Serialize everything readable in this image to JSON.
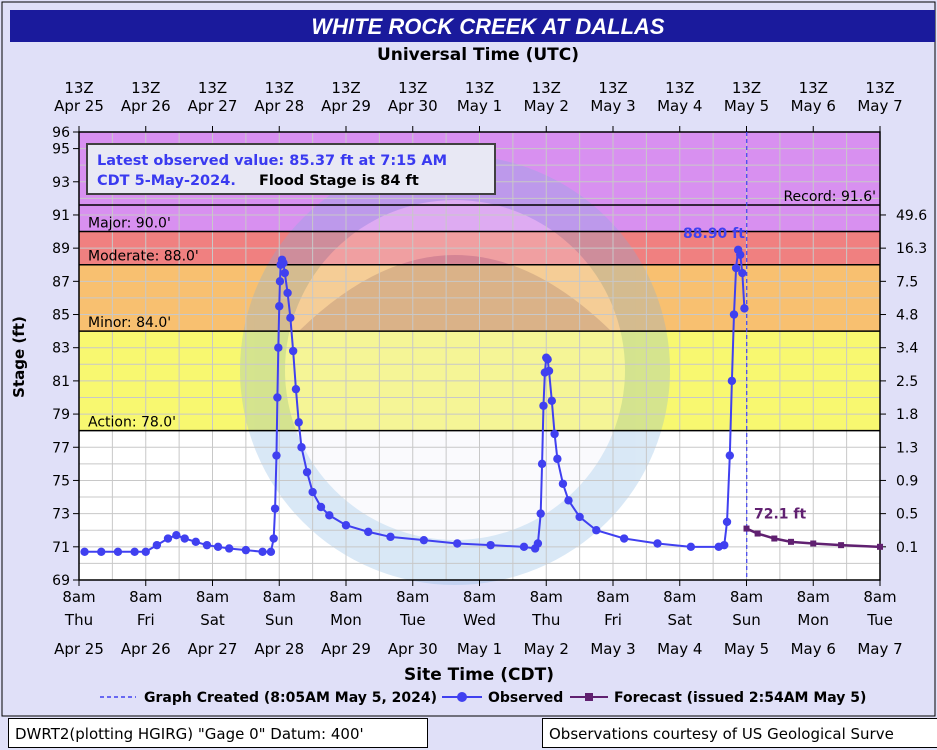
{
  "title": "WHITE ROCK CREEK AT DALLAS",
  "top_axis_title": "Universal Time (UTC)",
  "bottom_axis_title": "Site Time (CDT)",
  "info_box": {
    "line1": "Latest observed value: 85.37 ft at 7:15 AM",
    "line2a": "CDT 5-May-2024.",
    "line2b": "Flood Stage is 84 ft"
  },
  "legend": {
    "created": "Graph Created (8:05AM May 5, 2024)",
    "observed": "Observed",
    "forecast": "Forecast (issued 2:54AM May 5)"
  },
  "footer_left": "DWRT2(plotting HGIRG) \"Gage 0\" Datum: 400'",
  "footer_right": "Observations courtesy of US Geological Surve",
  "colors": {
    "title_bg": "#1a1a9c",
    "observed": "#4040f0",
    "forecast": "#602070",
    "record_band": "#d890f0",
    "major_band": "#d890f0",
    "moderate_band": "#f08080",
    "minor_band": "#f8c070",
    "action_band": "#f8f870",
    "normal_band": "#ffffff"
  },
  "chart_data": {
    "type": "line",
    "title": "WHITE ROCK CREEK AT DALLAS",
    "xlabel": "Site Time (CDT)",
    "ylabel": "Stage (ft)",
    "y2label": "",
    "top_xlabel": "Universal Time (UTC)",
    "xlim": [
      "2024-04-25 08:00",
      "2024-05-07 08:00"
    ],
    "ylim": [
      69,
      96
    ],
    "y_ticks": [
      69,
      71,
      73,
      75,
      77,
      79,
      81,
      83,
      85,
      87,
      89,
      91,
      93,
      95,
      96
    ],
    "bottom_ticks": [
      {
        "time": "8am",
        "dow": "Thu",
        "date": "Apr 25"
      },
      {
        "time": "8am",
        "dow": "Fri",
        "date": "Apr 26"
      },
      {
        "time": "8am",
        "dow": "Sat",
        "date": "Apr 27"
      },
      {
        "time": "8am",
        "dow": "Sun",
        "date": "Apr 28"
      },
      {
        "time": "8am",
        "dow": "Mon",
        "date": "Apr 29"
      },
      {
        "time": "8am",
        "dow": "Tue",
        "date": "Apr 30"
      },
      {
        "time": "8am",
        "dow": "Wed",
        "date": "May 1"
      },
      {
        "time": "8am",
        "dow": "Thu",
        "date": "May 2"
      },
      {
        "time": "8am",
        "dow": "Fri",
        "date": "May 3"
      },
      {
        "time": "8am",
        "dow": "Sat",
        "date": "May 4"
      },
      {
        "time": "8am",
        "dow": "Sun",
        "date": "May 5"
      },
      {
        "time": "8am",
        "dow": "Mon",
        "date": "May 6"
      },
      {
        "time": "8am",
        "dow": "Tue",
        "date": "May 7"
      }
    ],
    "top_ticks": [
      {
        "time": "13Z",
        "date": "Apr 25"
      },
      {
        "time": "13Z",
        "date": "Apr 26"
      },
      {
        "time": "13Z",
        "date": "Apr 27"
      },
      {
        "time": "13Z",
        "date": "Apr 28"
      },
      {
        "time": "13Z",
        "date": "Apr 29"
      },
      {
        "time": "13Z",
        "date": "Apr 30"
      },
      {
        "time": "13Z",
        "date": "May  1"
      },
      {
        "time": "13Z",
        "date": "May  2"
      },
      {
        "time": "13Z",
        "date": "May  3"
      },
      {
        "time": "13Z",
        "date": "May  4"
      },
      {
        "time": "13Z",
        "date": "May  5"
      },
      {
        "time": "13Z",
        "date": "May  6"
      },
      {
        "time": "13Z",
        "date": "May  7"
      }
    ],
    "right_ticks": [
      {
        "stage": 71,
        "label": "0.1"
      },
      {
        "stage": 73,
        "label": "0.5"
      },
      {
        "stage": 75,
        "label": "0.9"
      },
      {
        "stage": 77,
        "label": "1.3"
      },
      {
        "stage": 79,
        "label": "1.8"
      },
      {
        "stage": 81,
        "label": "2.5"
      },
      {
        "stage": 83,
        "label": "3.4"
      },
      {
        "stage": 85,
        "label": "4.8"
      },
      {
        "stage": 87,
        "label": "7.5"
      },
      {
        "stage": 89,
        "label": "16.3"
      },
      {
        "stage": 91,
        "label": "49.6"
      }
    ],
    "flood_categories": [
      {
        "name": "Record",
        "label": "Record: 91.6'",
        "stage": 91.6
      },
      {
        "name": "Major",
        "label": "Major: 90.0'",
        "stage": 90.0
      },
      {
        "name": "Moderate",
        "label": "Moderate: 88.0'",
        "stage": 88.0
      },
      {
        "name": "Minor",
        "label": "Minor: 84.0'",
        "stage": 84.0
      },
      {
        "name": "Action",
        "label": "Action: 78.0'",
        "stage": 78.0
      }
    ],
    "graph_created": "2024-05-05 08:05",
    "series": [
      {
        "name": "Observed",
        "points": [
          [
            "2024-04-25 10:00",
            70.7
          ],
          [
            "2024-04-25 16:00",
            70.7
          ],
          [
            "2024-04-25 22:00",
            70.7
          ],
          [
            "2024-04-26 04:00",
            70.7
          ],
          [
            "2024-04-26 08:00",
            70.7
          ],
          [
            "2024-04-26 12:00",
            71.1
          ],
          [
            "2024-04-26 16:00",
            71.5
          ],
          [
            "2024-04-26 19:00",
            71.7
          ],
          [
            "2024-04-26 22:00",
            71.5
          ],
          [
            "2024-04-27 02:00",
            71.3
          ],
          [
            "2024-04-27 06:00",
            71.1
          ],
          [
            "2024-04-27 10:00",
            71.0
          ],
          [
            "2024-04-27 14:00",
            70.9
          ],
          [
            "2024-04-27 20:00",
            70.8
          ],
          [
            "2024-04-28 02:00",
            70.7
          ],
          [
            "2024-04-28 05:00",
            70.7
          ],
          [
            "2024-04-28 06:00",
            71.5
          ],
          [
            "2024-04-28 06:30",
            73.3
          ],
          [
            "2024-04-28 07:00",
            76.5
          ],
          [
            "2024-04-28 07:20",
            80.0
          ],
          [
            "2024-04-28 07:40",
            83.0
          ],
          [
            "2024-04-28 08:00",
            85.5
          ],
          [
            "2024-04-28 08:15",
            87.0
          ],
          [
            "2024-04-28 08:30",
            88.0
          ],
          [
            "2024-04-28 09:00",
            88.3
          ],
          [
            "2024-04-28 09:30",
            88.1
          ],
          [
            "2024-04-28 10:00",
            87.5
          ],
          [
            "2024-04-28 11:00",
            86.3
          ],
          [
            "2024-04-28 12:00",
            84.8
          ],
          [
            "2024-04-28 13:00",
            82.8
          ],
          [
            "2024-04-28 14:00",
            80.5
          ],
          [
            "2024-04-28 15:00",
            78.5
          ],
          [
            "2024-04-28 16:00",
            77.0
          ],
          [
            "2024-04-28 18:00",
            75.5
          ],
          [
            "2024-04-28 20:00",
            74.3
          ],
          [
            "2024-04-28 23:00",
            73.4
          ],
          [
            "2024-04-29 02:00",
            72.9
          ],
          [
            "2024-04-29 08:00",
            72.3
          ],
          [
            "2024-04-29 16:00",
            71.9
          ],
          [
            "2024-04-30 00:00",
            71.6
          ],
          [
            "2024-04-30 12:00",
            71.4
          ],
          [
            "2024-05-01 00:00",
            71.2
          ],
          [
            "2024-05-01 12:00",
            71.1
          ],
          [
            "2024-05-02 00:00",
            71.0
          ],
          [
            "2024-05-02 04:00",
            70.9
          ],
          [
            "2024-05-02 05:00",
            71.2
          ],
          [
            "2024-05-02 06:00",
            73.0
          ],
          [
            "2024-05-02 06:30",
            76.0
          ],
          [
            "2024-05-02 07:00",
            79.5
          ],
          [
            "2024-05-02 07:30",
            81.5
          ],
          [
            "2024-05-02 08:00",
            82.4
          ],
          [
            "2024-05-02 08:30",
            82.3
          ],
          [
            "2024-05-02 09:00",
            81.6
          ],
          [
            "2024-05-02 10:00",
            79.8
          ],
          [
            "2024-05-02 11:00",
            77.8
          ],
          [
            "2024-05-02 12:00",
            76.3
          ],
          [
            "2024-05-02 14:00",
            74.8
          ],
          [
            "2024-05-02 16:00",
            73.8
          ],
          [
            "2024-05-02 20:00",
            72.8
          ],
          [
            "2024-05-03 02:00",
            72.0
          ],
          [
            "2024-05-03 12:00",
            71.5
          ],
          [
            "2024-05-04 00:00",
            71.2
          ],
          [
            "2024-05-04 12:00",
            71.0
          ],
          [
            "2024-05-04 22:00",
            71.0
          ],
          [
            "2024-05-05 00:00",
            71.1
          ],
          [
            "2024-05-05 01:00",
            72.5
          ],
          [
            "2024-05-05 02:00",
            76.5
          ],
          [
            "2024-05-05 02:45",
            81.0
          ],
          [
            "2024-05-05 03:30",
            85.0
          ],
          [
            "2024-05-05 04:15",
            87.8
          ],
          [
            "2024-05-05 05:00",
            88.9
          ],
          [
            "2024-05-05 05:45",
            88.6
          ],
          [
            "2024-05-05 06:30",
            87.5
          ],
          [
            "2024-05-05 07:15",
            85.37
          ]
        ]
      },
      {
        "name": "Forecast (issued 2:54AM May 5)",
        "label": "72.1 ft",
        "points": [
          [
            "2024-05-05 08:00",
            72.1
          ],
          [
            "2024-05-05 12:00",
            71.8
          ],
          [
            "2024-05-05 18:00",
            71.5
          ],
          [
            "2024-05-06 00:00",
            71.3
          ],
          [
            "2024-05-06 08:00",
            71.2
          ],
          [
            "2024-05-06 18:00",
            71.1
          ],
          [
            "2024-05-07 08:00",
            71.0
          ]
        ]
      }
    ],
    "annotations": [
      "88.90 ft",
      "72.1 ft"
    ]
  }
}
